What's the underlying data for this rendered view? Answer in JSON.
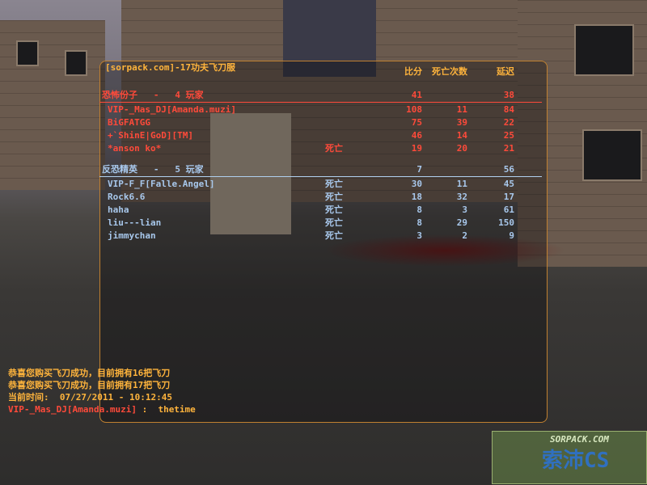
{
  "scoreboard": {
    "server": "[sorpack.com]-17功夫飞刀服",
    "headers": {
      "score": "比分",
      "deaths": "死亡次数",
      "latency": "延迟"
    },
    "teams": [
      {
        "label": "恐怖份子   -   4 玩家",
        "score": 41,
        "latency": 38,
        "players": [
          {
            "name": "VIP-_Mas_DJ[Amanda.muzi]",
            "score": 108,
            "deaths": 11,
            "latency": 84
          },
          {
            "name": "BiGFATGG",
            "score": 75,
            "deaths": 39,
            "latency": 22
          },
          {
            "name": "+`ShinE|GoD][TM]",
            "score": 46,
            "deaths": 14,
            "latency": 25
          },
          {
            "name": "*anson ko*",
            "status": "死亡",
            "score": 19,
            "deaths": 20,
            "latency": 21
          }
        ]
      },
      {
        "label": "反恐精英   -   5 玩家",
        "score": 7,
        "latency": 56,
        "players": [
          {
            "name": "VIP-F_F[Falle.Angel]",
            "status": "死亡",
            "score": 30,
            "deaths": 11,
            "latency": 45
          },
          {
            "name": "Rock6.6",
            "status": "死亡",
            "score": 18,
            "deaths": 32,
            "latency": 17
          },
          {
            "name": "haha",
            "status": "死亡",
            "score": 8,
            "deaths": 3,
            "latency": 61
          },
          {
            "name": "liu---lian",
            "status": "死亡",
            "score": 8,
            "deaths": 29,
            "latency": 150
          },
          {
            "name": "jimmychan",
            "status": "死亡",
            "score": 3,
            "deaths": 2,
            "latency": 9
          }
        ]
      }
    ]
  },
  "chat": [
    {
      "text": "恭喜您购买飞刀成功，目前拥有16把飞刀"
    },
    {
      "text": "恭喜您购买飞刀成功，目前拥有17把飞刀"
    },
    {
      "text": "当前时间:  07/27/2011 - 10:12:45"
    },
    {
      "name": "VIP-_Mas_DJ[Amanda.muzi]",
      "text": " :  thetime"
    }
  ],
  "watermark": {
    "site": "SORPACK.COM",
    "brand": "索沛CS"
  }
}
